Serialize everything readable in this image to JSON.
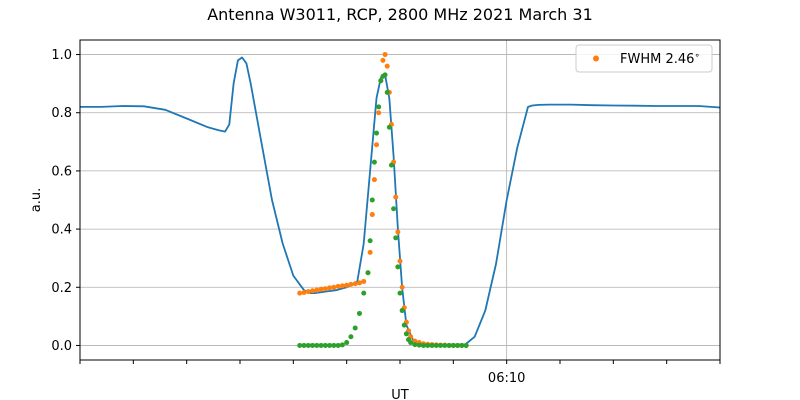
{
  "chart_data": {
    "type": "line",
    "title": "Antenna W3011, RCP, 2800 MHz 2021 March 31",
    "xlabel": "UT",
    "ylabel": "a.u.",
    "x_unit": "minutes",
    "xlim": [
      0,
      30
    ],
    "ylim": [
      -0.05,
      1.05
    ],
    "yticks": [
      0.0,
      0.2,
      0.4,
      0.6,
      0.8,
      1.0
    ],
    "ytick_labels": [
      "0.0",
      "0.2",
      "0.4",
      "0.6",
      "0.8",
      "1.0"
    ],
    "xticks": [
      0,
      2.5,
      5,
      7.5,
      10,
      12.5,
      15,
      17.5,
      20,
      22.5,
      25,
      27.5,
      30
    ],
    "xtick_labels": [
      {
        "x": 20,
        "label": "06:10"
      }
    ],
    "x_gridlines": [
      20
    ],
    "grid": {
      "y": true,
      "x": "labeled ticks only"
    },
    "legend": {
      "placement": "top-right",
      "entries": [
        {
          "label": "FWHM 2.46$^\\circ$",
          "text": "FWHM 2.46",
          "superscript": "∘",
          "color": "#ff7f0e"
        }
      ]
    },
    "colors": {
      "measured": "#1f77b4",
      "fit": "#ff7f0e",
      "model": "#2ca02c"
    },
    "series": [
      {
        "kind": "line",
        "color": "#1f77b4",
        "x": [
          0,
          1,
          2,
          3,
          4,
          5,
          6,
          6.5,
          6.8,
          7.0,
          7.2,
          7.4,
          7.6,
          7.8,
          8.0,
          8.5,
          9.0,
          9.5,
          10.0,
          10.5,
          10.8,
          11.0,
          11.5,
          12.0,
          12.5,
          13.0,
          13.3,
          13.6,
          13.9,
          14.1,
          14.3,
          14.5,
          14.7,
          14.9,
          15.1,
          15.3,
          15.6,
          15.9,
          16.2,
          16.5,
          17.0,
          17.5,
          18.0,
          18.5,
          19.0,
          19.5,
          20.0,
          20.5,
          21.0,
          21.2,
          21.5,
          22,
          23,
          24,
          25,
          26,
          27,
          28,
          29,
          30
        ],
        "y": [
          0.82,
          0.82,
          0.823,
          0.822,
          0.81,
          0.78,
          0.75,
          0.74,
          0.735,
          0.76,
          0.9,
          0.98,
          0.99,
          0.97,
          0.9,
          0.7,
          0.5,
          0.35,
          0.24,
          0.19,
          0.18,
          0.18,
          0.185,
          0.19,
          0.2,
          0.22,
          0.35,
          0.6,
          0.85,
          0.92,
          0.93,
          0.85,
          0.65,
          0.4,
          0.2,
          0.07,
          0.02,
          0.005,
          0.002,
          0.0,
          0.0,
          0.0,
          0.0,
          0.03,
          0.12,
          0.28,
          0.5,
          0.68,
          0.82,
          0.825,
          0.827,
          0.828,
          0.828,
          0.826,
          0.825,
          0.824,
          0.823,
          0.823,
          0.823,
          0.818
        ]
      },
      {
        "kind": "scatter",
        "color": "#ff7f0e",
        "x": [
          10.3,
          10.5,
          10.7,
          10.9,
          11.1,
          11.3,
          11.5,
          11.7,
          11.9,
          12.1,
          12.3,
          12.5,
          12.7,
          12.9,
          13.1,
          13.3,
          13.5,
          13.6,
          13.7,
          13.8,
          13.9,
          14.0,
          14.1,
          14.2,
          14.3,
          14.4,
          14.5,
          14.6,
          14.7,
          14.8,
          14.9,
          15.0,
          15.1,
          15.2,
          15.3,
          15.4,
          15.5,
          15.7,
          15.9,
          16.1,
          16.3,
          16.5,
          16.7,
          16.9,
          17.1,
          17.3,
          17.5,
          17.7,
          17.9,
          18.1
        ],
        "y": [
          0.18,
          0.182,
          0.185,
          0.188,
          0.19,
          0.193,
          0.195,
          0.198,
          0.2,
          0.203,
          0.205,
          0.207,
          0.21,
          0.212,
          0.215,
          0.22,
          0.25,
          0.32,
          0.45,
          0.57,
          0.69,
          0.8,
          0.91,
          0.98,
          1.0,
          0.96,
          0.87,
          0.76,
          0.63,
          0.51,
          0.39,
          0.29,
          0.2,
          0.13,
          0.08,
          0.05,
          0.03,
          0.015,
          0.01,
          0.006,
          0.004,
          0.003,
          0.002,
          0.001,
          0.001,
          0.0,
          0.0,
          0.0,
          0.0,
          0.0
        ]
      },
      {
        "kind": "scatter",
        "color": "#2ca02c",
        "x": [
          10.3,
          10.5,
          10.7,
          10.9,
          11.1,
          11.3,
          11.5,
          11.7,
          11.9,
          12.1,
          12.3,
          12.5,
          12.7,
          12.9,
          13.1,
          13.3,
          13.5,
          13.6,
          13.7,
          13.8,
          13.9,
          14.0,
          14.1,
          14.2,
          14.3,
          14.4,
          14.5,
          14.6,
          14.7,
          14.8,
          14.9,
          15.0,
          15.1,
          15.2,
          15.3,
          15.4,
          15.5,
          15.7,
          15.9,
          16.1,
          16.3,
          16.5,
          16.7,
          16.9,
          17.1,
          17.3,
          17.5,
          17.7,
          17.9,
          18.1
        ],
        "y": [
          0.0,
          0.0,
          0.0,
          0.0,
          0.0,
          0.0,
          0.0,
          0.0,
          0.0,
          0.0,
          0.002,
          0.01,
          0.03,
          0.06,
          0.11,
          0.18,
          0.25,
          0.36,
          0.5,
          0.63,
          0.73,
          0.82,
          0.91,
          0.925,
          0.93,
          0.87,
          0.75,
          0.62,
          0.47,
          0.37,
          0.27,
          0.18,
          0.12,
          0.07,
          0.04,
          0.02,
          0.01,
          0.003,
          0.001,
          0.0,
          0.0,
          0.0,
          0.0,
          0.0,
          0.0,
          0.0,
          0.0,
          0.0,
          0.0,
          0.0
        ]
      }
    ]
  }
}
